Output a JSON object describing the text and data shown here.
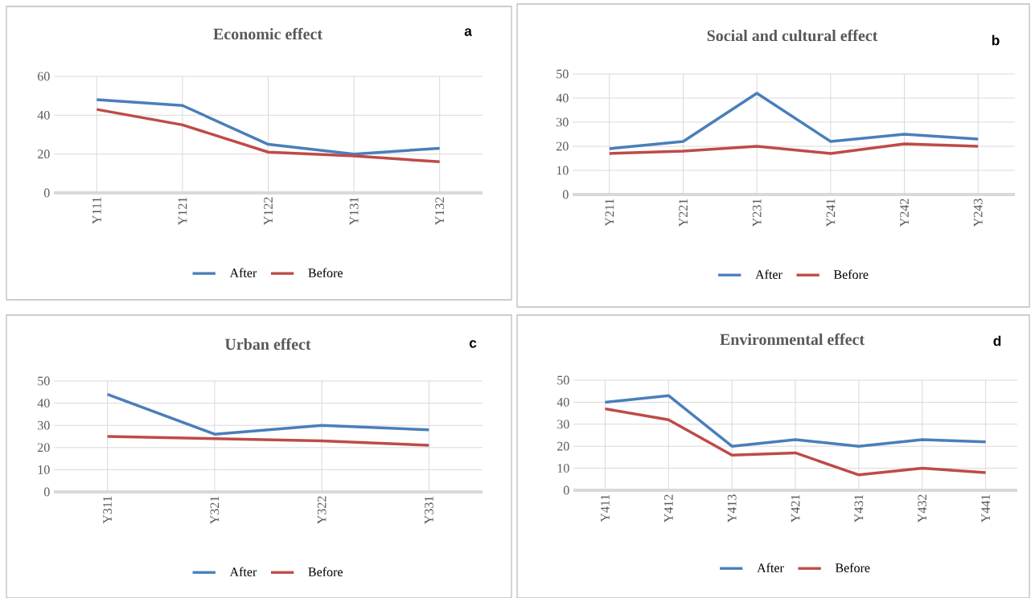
{
  "chart_data": [
    {
      "type": "line",
      "title": "Economic effect",
      "annotations": [
        "a"
      ],
      "categories": [
        "Y111",
        "Y121",
        "Y122",
        "Y131",
        "Y132"
      ],
      "series": [
        {
          "name": "After",
          "color": "#4a7ebb",
          "values": [
            48,
            45,
            25,
            20,
            23
          ]
        },
        {
          "name": "Before",
          "color": "#be4b48",
          "values": [
            43,
            35,
            21,
            19,
            16
          ]
        }
      ],
      "ylim": [
        0,
        60
      ],
      "yticks": [
        0,
        20,
        40,
        60
      ],
      "grid": true,
      "legend": "bottom",
      "marker": "none",
      "line_style": "solid"
    },
    {
      "type": "line",
      "title": "Social and cultural effect",
      "annotations": [
        "b"
      ],
      "categories": [
        "Y211",
        "Y221",
        "Y231",
        "Y241",
        "Y242",
        "Y243"
      ],
      "series": [
        {
          "name": "After",
          "color": "#4a7ebb",
          "values": [
            19,
            22,
            42,
            22,
            25,
            23
          ]
        },
        {
          "name": "Before",
          "color": "#be4b48",
          "values": [
            17,
            18,
            20,
            17,
            21,
            20
          ]
        }
      ],
      "ylim": [
        0,
        50
      ],
      "yticks": [
        0,
        10,
        20,
        30,
        40,
        50
      ],
      "grid": true,
      "legend": "bottom",
      "marker": "none",
      "line_style": "solid"
    },
    {
      "type": "line",
      "title": "Urban effect",
      "annotations": [
        "c"
      ],
      "categories": [
        "Y311",
        "Y321",
        "Y322",
        "Y331"
      ],
      "series": [
        {
          "name": "After",
          "color": "#4a7ebb",
          "values": [
            44,
            26,
            30,
            28
          ]
        },
        {
          "name": "Before",
          "color": "#be4b48",
          "values": [
            25,
            24,
            23,
            21
          ]
        }
      ],
      "ylim": [
        0,
        50
      ],
      "yticks": [
        0,
        10,
        20,
        30,
        40,
        50
      ],
      "grid": true,
      "legend": "bottom",
      "marker": "none",
      "line_style": "solid"
    },
    {
      "type": "line",
      "title": "Environmental effect",
      "annotations": [
        "d"
      ],
      "categories": [
        "Y411",
        "Y412",
        "Y413",
        "Y421",
        "Y431",
        "Y432",
        "Y441"
      ],
      "series": [
        {
          "name": "After",
          "color": "#4a7ebb",
          "values": [
            40,
            43,
            20,
            23,
            20,
            23,
            22
          ]
        },
        {
          "name": "Before",
          "color": "#be4b48",
          "values": [
            37,
            32,
            16,
            17,
            7,
            10,
            8
          ]
        }
      ],
      "ylim": [
        0,
        50
      ],
      "yticks": [
        0,
        10,
        20,
        30,
        40,
        50
      ],
      "grid": true,
      "legend": "bottom",
      "marker": "none",
      "line_style": "solid"
    }
  ]
}
